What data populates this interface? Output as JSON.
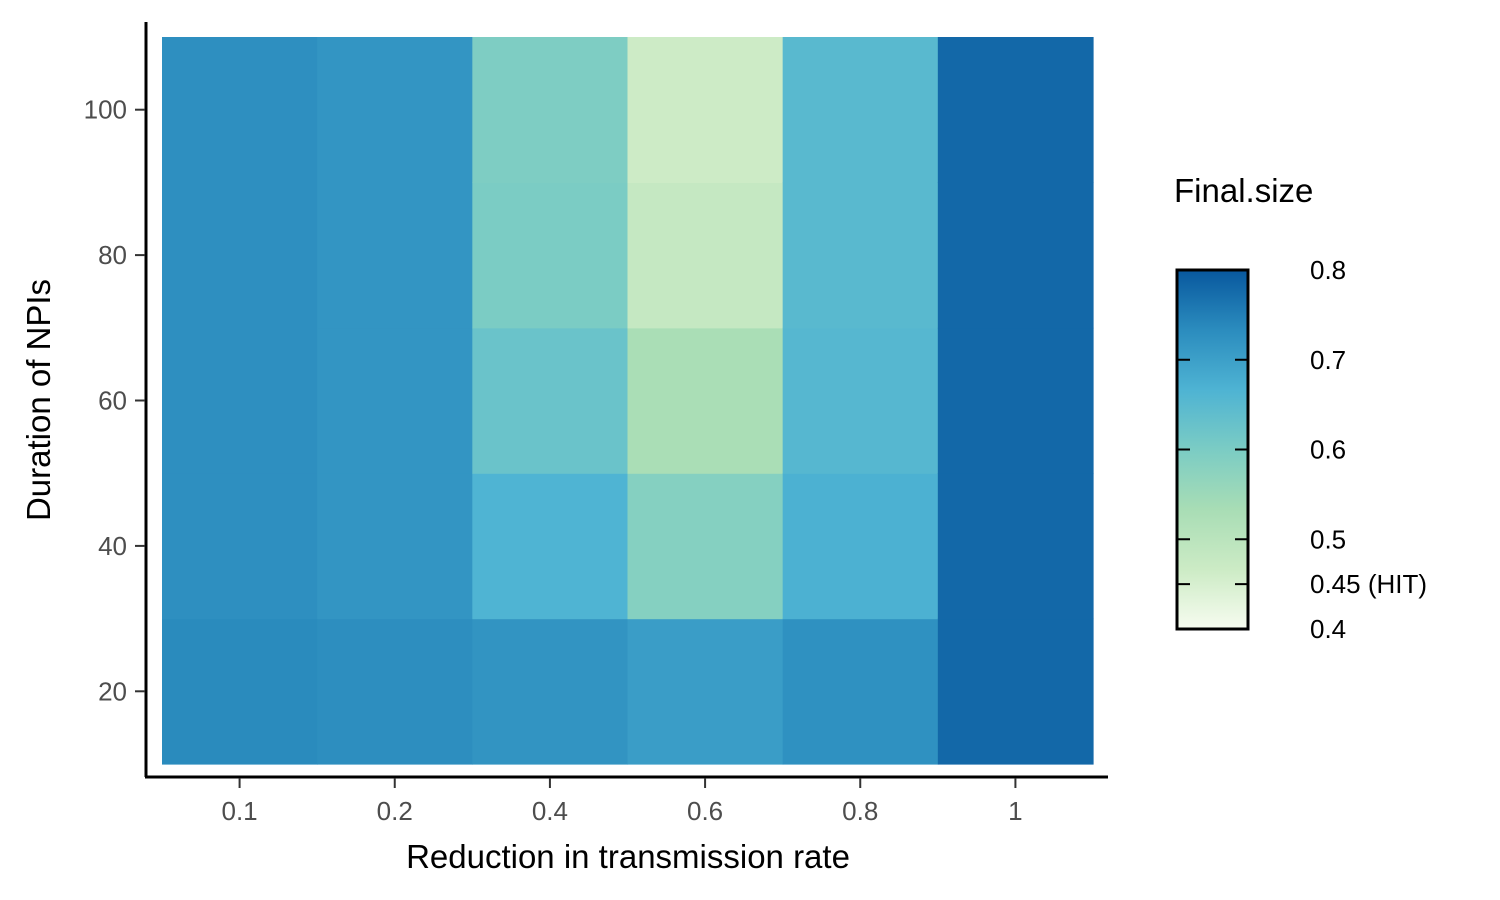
{
  "chart_data": {
    "type": "heatmap",
    "xlabel": "Reduction in transmission rate",
    "ylabel": "Duration of NPIs",
    "x_categories": [
      "0.1",
      "0.2",
      "0.4",
      "0.6",
      "0.8",
      "1"
    ],
    "y_ticks": [
      20,
      40,
      60,
      80,
      100
    ],
    "y_values": [
      20,
      40,
      60,
      80,
      100
    ],
    "ylim": [
      10,
      110
    ],
    "values": [
      [
        0.735,
        0.728,
        0.728,
        0.728,
        0.728
      ],
      [
        0.73,
        0.718,
        0.718,
        0.718,
        0.718
      ],
      [
        0.72,
        0.665,
        0.625,
        0.6,
        0.595
      ],
      [
        0.705,
        0.585,
        0.53,
        0.48,
        0.465
      ],
      [
        0.725,
        0.67,
        0.655,
        0.65,
        0.65
      ],
      [
        0.78,
        0.78,
        0.78,
        0.78,
        0.78
      ]
    ],
    "grid": false,
    "legend": {
      "title": "Final.size",
      "position": "right",
      "limits": [
        0.4,
        0.8
      ],
      "breaks": [
        0.4,
        0.45,
        0.5,
        0.6,
        0.7,
        0.8
      ],
      "labels": [
        "0.4",
        "0.45 (HIT)",
        "0.5",
        "0.6",
        "0.7",
        "0.8"
      ],
      "colors": [
        "#f7fcf0",
        "#ccebc5",
        "#a8ddb5",
        "#7bccc4",
        "#4eb3d3",
        "#2b8cbe",
        "#08589e"
      ]
    }
  }
}
